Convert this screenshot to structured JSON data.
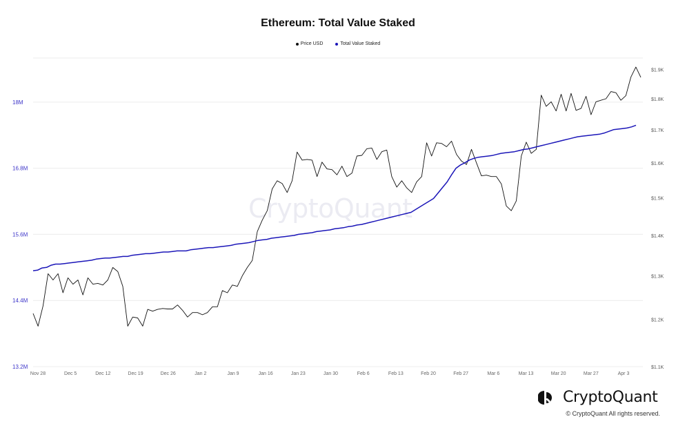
{
  "chart_data": {
    "type": "line",
    "title": "Ethereum: Total Value Staked",
    "x_ticks": [
      "Nov 28",
      "Dec 5",
      "Dec 12",
      "Dec 19",
      "Dec 26",
      "Jan 2",
      "Jan 9",
      "Jan 16",
      "Jan 23",
      "Jan 30",
      "Feb 6",
      "Feb 13",
      "Feb 20",
      "Feb 27",
      "Mar 6",
      "Mar 13",
      "Mar 20",
      "Mar 27",
      "Apr 3"
    ],
    "left_axis": {
      "ticks": [
        "13.2M",
        "14.4M",
        "15.6M",
        "16.8M",
        "18M"
      ],
      "tick_values": [
        13.2,
        14.4,
        15.6,
        16.8,
        18.0
      ],
      "range": [
        13.2,
        18.8
      ],
      "color": "#3d35c9"
    },
    "right_axis": {
      "ticks": [
        "$1.1K",
        "$1.2K",
        "$1.3K",
        "$1.4K",
        "$1.5K",
        "$1.6K",
        "$1.7K",
        "$1.8K",
        "$1.9K"
      ],
      "tick_values": [
        1100,
        1200,
        1300,
        1400,
        1500,
        1600,
        1700,
        1800,
        1900
      ],
      "scale": "log",
      "range": [
        1100,
        1940
      ],
      "color": "#555555"
    },
    "series": [
      {
        "name": "Price USD",
        "axis": "right",
        "color": "#111111",
        "values": [
          1213,
          1185,
          1230,
          1305,
          1290,
          1305,
          1260,
          1295,
          1280,
          1290,
          1255,
          1295,
          1280,
          1282,
          1278,
          1290,
          1320,
          1310,
          1275,
          1185,
          1205,
          1203,
          1185,
          1222,
          1218,
          1222,
          1224,
          1223,
          1223,
          1232,
          1220,
          1205,
          1215,
          1215,
          1210,
          1215,
          1228,
          1228,
          1265,
          1260,
          1278,
          1275,
          1300,
          1320,
          1337,
          1410,
          1440,
          1465,
          1525,
          1548,
          1540,
          1515,
          1548,
          1632,
          1608,
          1610,
          1608,
          1560,
          1602,
          1582,
          1580,
          1565,
          1590,
          1560,
          1570,
          1620,
          1622,
          1642,
          1644,
          1610,
          1633,
          1638,
          1560,
          1530,
          1548,
          1528,
          1515,
          1545,
          1560,
          1660,
          1620,
          1660,
          1658,
          1648,
          1665,
          1625,
          1605,
          1595,
          1640,
          1600,
          1562,
          1564,
          1560,
          1560,
          1539,
          1478,
          1465,
          1492,
          1620,
          1662,
          1628,
          1640,
          1812,
          1775,
          1790,
          1760,
          1815,
          1760,
          1818,
          1762,
          1768,
          1808,
          1748,
          1790,
          1795,
          1800,
          1824,
          1820,
          1795,
          1810,
          1873,
          1908,
          1872
        ]
      },
      {
        "name": "Total Value Staked",
        "axis": "left",
        "color": "#1a15b8",
        "values": [
          14.94,
          14.95,
          14.99,
          15.0,
          15.04,
          15.06,
          15.06,
          15.07,
          15.08,
          15.09,
          15.1,
          15.11,
          15.12,
          15.13,
          15.15,
          15.16,
          15.17,
          15.17,
          15.18,
          15.19,
          15.2,
          15.2,
          15.22,
          15.23,
          15.24,
          15.25,
          15.25,
          15.26,
          15.27,
          15.28,
          15.28,
          15.29,
          15.3,
          15.3,
          15.3,
          15.32,
          15.33,
          15.34,
          15.35,
          15.36,
          15.36,
          15.37,
          15.38,
          15.39,
          15.4,
          15.42,
          15.43,
          15.44,
          15.45,
          15.47,
          15.49,
          15.5,
          15.51,
          15.53,
          15.54,
          15.55,
          15.56,
          15.57,
          15.58,
          15.6,
          15.61,
          15.62,
          15.63,
          15.65,
          15.66,
          15.67,
          15.68,
          15.7,
          15.71,
          15.72,
          15.74,
          15.75,
          15.77,
          15.78,
          15.8,
          15.82,
          15.84,
          15.86,
          15.88,
          15.9,
          15.92,
          15.94,
          15.96,
          15.98,
          16.0,
          16.05,
          16.1,
          16.15,
          16.2,
          16.25,
          16.35,
          16.45,
          16.55,
          16.68,
          16.8,
          16.86,
          16.9,
          16.95,
          16.98,
          17.0,
          17.01,
          17.02,
          17.03,
          17.05,
          17.07,
          17.08,
          17.09,
          17.1,
          17.12,
          17.14,
          17.15,
          17.17,
          17.19,
          17.21,
          17.23,
          17.25,
          17.27,
          17.29,
          17.31,
          17.33,
          17.35,
          17.37,
          17.38,
          17.39,
          17.4,
          17.41,
          17.42,
          17.44,
          17.47,
          17.5,
          17.51,
          17.52,
          17.53,
          17.55,
          17.58
        ]
      }
    ],
    "gridlines": "horizontal",
    "legend_position": "top-center"
  },
  "watermark_text": "CryptoQuant",
  "brand": {
    "name": "CryptoQuant",
    "logo_icon": "cryptoquant-logo-icon",
    "copyright": "© CryptoQuant All rights reserved."
  }
}
